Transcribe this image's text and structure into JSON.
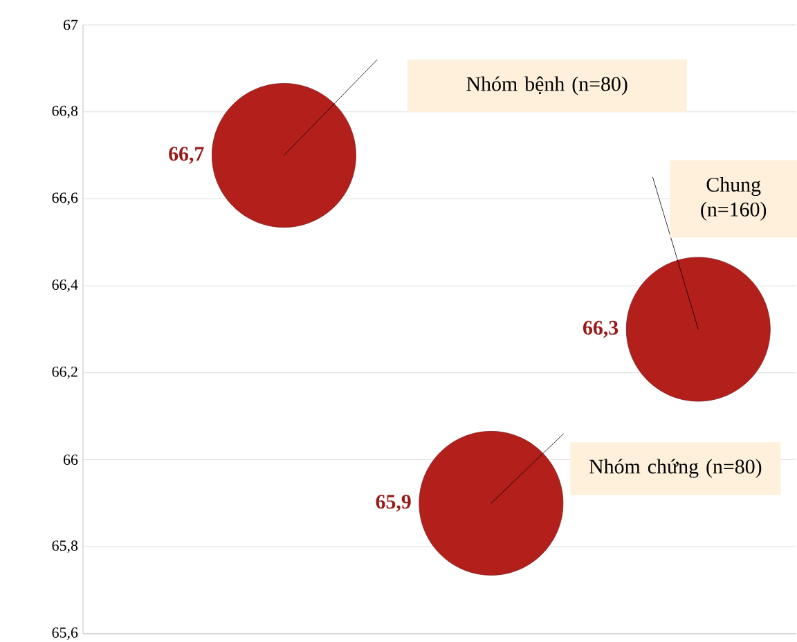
{
  "chart_data": {
    "type": "bubble",
    "categories": [
      null,
      null,
      null
    ],
    "values": [
      66.7,
      65.9,
      66.3
    ],
    "sizes": [
      1,
      1,
      1
    ],
    "color": "#b3201c",
    "value_labels": [
      "66,7",
      "65,9",
      "66,3"
    ],
    "annotations": [
      "Nhóm bệnh (n=80)",
      "Nhóm chứng (n=80)",
      "Chung (n=160)"
    ],
    "ylim": [
      65.6,
      67
    ],
    "yticks": [
      {
        "value": 65.6,
        "label": "65,6"
      },
      {
        "value": 65.8,
        "label": "65,8"
      },
      66,
      {
        "value": 66.2,
        "label": "66,2"
      },
      {
        "value": 66.4,
        "label": "66,4"
      },
      {
        "value": 66.6,
        "label": "66,6"
      },
      {
        "value": 66.8,
        "label": "66,8"
      },
      67
    ],
    "grid": "y"
  }
}
